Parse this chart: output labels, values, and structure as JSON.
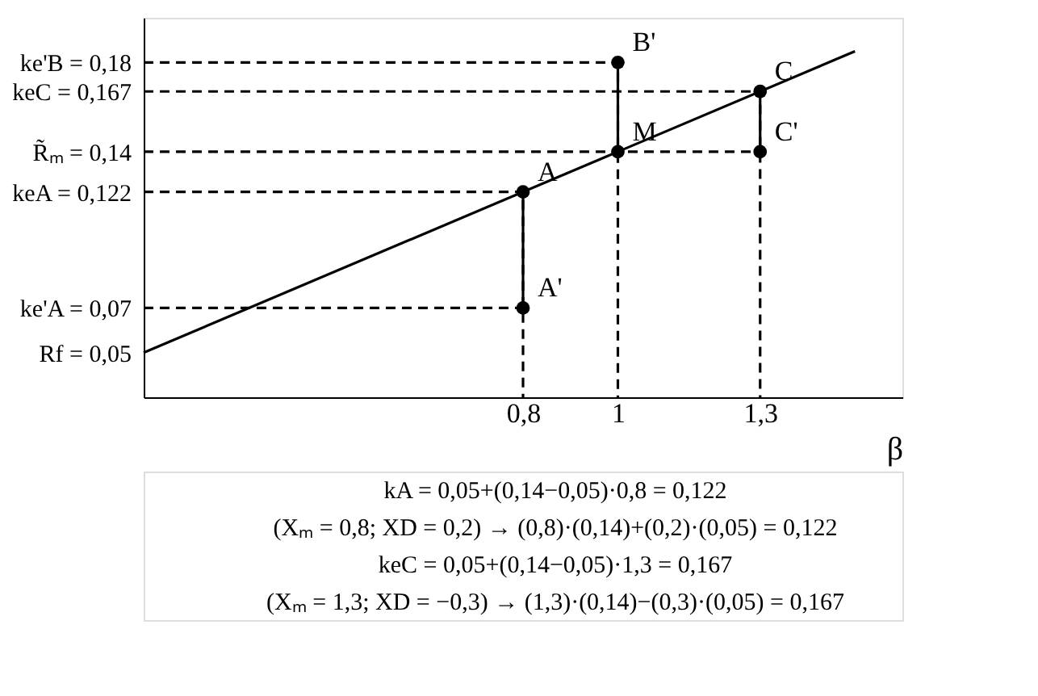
{
  "chart_data": {
    "type": "line",
    "xlabel": "β",
    "xlim": [
      0,
      1.6
    ],
    "ylim": [
      0.03,
      0.2
    ],
    "xticks": [
      {
        "value": 0.8,
        "label": "0,8"
      },
      {
        "value": 1,
        "label": "1"
      },
      {
        "value": 1.3,
        "label": "1,3"
      }
    ],
    "yticks": [
      {
        "value": 0.18,
        "label": "ke'B = 0,18"
      },
      {
        "value": 0.167,
        "label": "keC = 0,167"
      },
      {
        "value": 0.14,
        "label": "R̃ₘ = 0,14"
      },
      {
        "value": 0.122,
        "label": "keA = 0,122"
      },
      {
        "value": 0.07,
        "label": "ke'A = 0,07"
      },
      {
        "value": 0.05,
        "label": "Rf = 0,05"
      }
    ],
    "grid": false,
    "series": [
      {
        "color": "#000000",
        "line_style": "solid",
        "x": [
          0,
          1.5
        ],
        "values": [
          0.05,
          0.185
        ]
      },
      {
        "type": "scatter",
        "color": "#000000",
        "marker": "circle",
        "x": [
          0.8,
          0.8,
          1,
          1,
          1.3,
          1.3
        ],
        "values": [
          0.122,
          0.07,
          0.18,
          0.14,
          0.167,
          0.14
        ]
      },
      {
        "color": "#000000",
        "line_style": "dashed",
        "x": [
          0,
          1,
          1
        ],
        "values": [
          0.18,
          0.18,
          0.03
        ]
      },
      {
        "color": "#000000",
        "line_style": "dashed",
        "x": [
          0,
          1.3,
          1.3
        ],
        "values": [
          0.167,
          0.167,
          0.03
        ]
      },
      {
        "color": "#000000",
        "line_style": "dashed",
        "x": [
          0,
          1.3
        ],
        "values": [
          0.14,
          0.14
        ]
      },
      {
        "color": "#000000",
        "line_style": "dashed",
        "x": [
          0,
          0.8,
          0.8
        ],
        "values": [
          0.122,
          0.122,
          0.03
        ]
      },
      {
        "color": "#000000",
        "line_style": "dashed",
        "x": [
          0,
          0.8
        ],
        "values": [
          0.07,
          0.07
        ]
      },
      {
        "color": "#000000",
        "line_style": "solid",
        "x": [
          0.8,
          0.8
        ],
        "values": [
          0.07,
          0.122
        ]
      },
      {
        "color": "#000000",
        "line_style": "solid",
        "x": [
          1,
          1
        ],
        "values": [
          0.18,
          0.14
        ]
      },
      {
        "color": "#000000",
        "line_style": "solid",
        "x": [
          1.3,
          1.3
        ],
        "values": [
          0.14,
          0.167
        ]
      }
    ],
    "annotations": [
      {
        "text": "A",
        "x": 0.8,
        "y": 0.122
      },
      {
        "text": "A'",
        "x": 0.8,
        "y": 0.07
      },
      {
        "text": "B'",
        "x": 1,
        "y": 0.18
      },
      {
        "text": "M",
        "x": 1,
        "y": 0.14
      },
      {
        "text": "C",
        "x": 1.3,
        "y": 0.167
      },
      {
        "text": "C'",
        "x": 1.3,
        "y": 0.14
      },
      "kA = 0,05+(0,14−0,05)·0,8 = 0,122",
      "(Xₘ = 0,8; XD = 0,2) → (0,8)·(0,14)+(0,2)·(0,05) = 0,122",
      "keC = 0,05+(0,14−0,05)·1,3 = 0,167",
      "(Xₘ = 1,3; XD = −0,3) → (1,3)·(0,14)−(0,3)·(0,05) = 0,167"
    ]
  }
}
